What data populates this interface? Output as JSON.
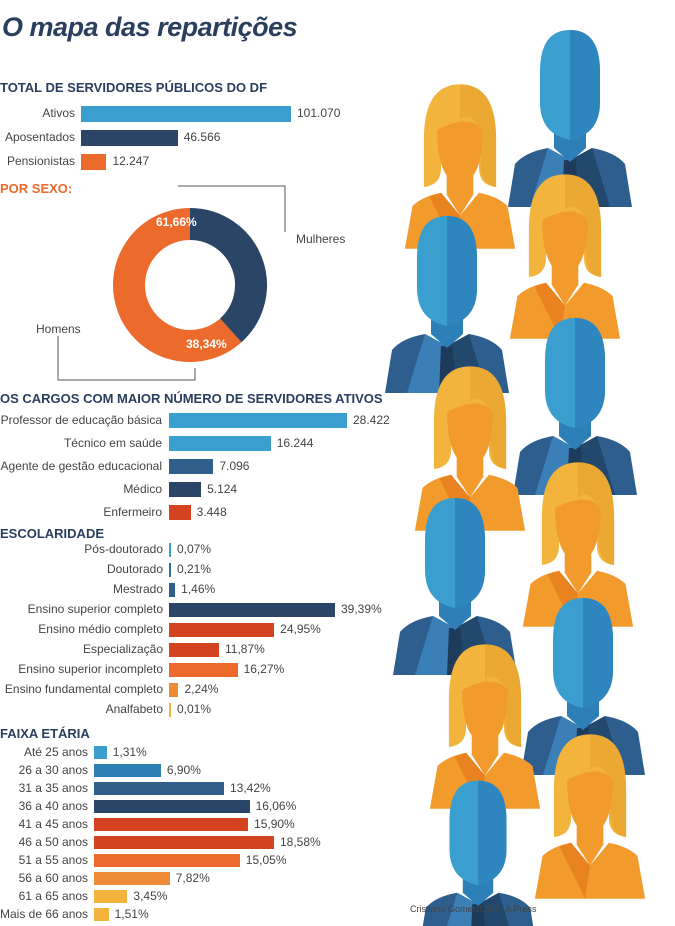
{
  "title": "O mapa das repartições",
  "credit": "Cristiano Gomes/CB/D. A Press",
  "icon": "people-illustration",
  "colors": {
    "blue": "#3a9fcf",
    "navy": "#2a4565",
    "orange": "#ec6a2c",
    "red": "#d4431f",
    "lorange": "#ee8c35",
    "yellow": "#f2b43c"
  },
  "chart_data": [
    {
      "type": "bar",
      "title": "TOTAL DE SERVIDORES PÚBLICOS DO DF",
      "categories": [
        "Ativos",
        "Aposentados",
        "Pensionistas"
      ],
      "values": [
        101070,
        46566,
        12247
      ],
      "labels": [
        "101.070",
        "46.566",
        "12.247"
      ]
    },
    {
      "type": "pie",
      "title": "POR SEXO:",
      "categories": [
        "Mulheres",
        "Homens"
      ],
      "values": [
        61.66,
        38.34
      ],
      "labels": [
        "61,66%",
        "38,34%"
      ]
    },
    {
      "type": "bar",
      "title": "OS CARGOS COM MAIOR NÚMERO DE SERVIDORES ATIVOS",
      "categories": [
        "Professor de educação básica",
        "Técnico em saúde",
        "Agente de gestão educacional",
        "Médico",
        "Enfermeiro"
      ],
      "values": [
        28422,
        16244,
        7096,
        5124,
        3448
      ],
      "labels": [
        "28.422",
        "16.244",
        "7.096",
        "5.124",
        "3.448"
      ]
    },
    {
      "type": "bar",
      "title": "ESCOLARIDADE",
      "categories": [
        "Pós-doutorado",
        "Doutorado",
        "Mestrado",
        "Ensino superior completo",
        "Ensino médio completo",
        "Especialização",
        "Ensino superior incompleto",
        "Ensino fundamental  completo",
        "Analfabeto"
      ],
      "values": [
        0.07,
        0.21,
        1.46,
        39.39,
        24.95,
        11.87,
        16.27,
        2.24,
        0.01
      ],
      "labels": [
        "0,07%",
        "0,21%",
        "1,46%",
        "39,39%",
        "24,95%",
        "11,87%",
        "16,27%",
        "2,24%",
        "0,01%"
      ]
    },
    {
      "type": "bar",
      "title": "FAIXA ETÁRIA",
      "categories": [
        "Até 25 anos",
        "26 a 30 anos",
        "31 a 35 anos",
        "36 a 40 anos",
        "41 a 45 anos",
        "46 a 50 anos",
        "51 a 55 anos",
        "56 a 60 anos",
        "61 a 65 anos",
        "Mais de 66 anos"
      ],
      "values": [
        1.31,
        6.9,
        13.42,
        16.06,
        15.9,
        18.58,
        15.05,
        7.82,
        3.45,
        1.51
      ],
      "labels": [
        "1,31%",
        "6,90%",
        "13,42%",
        "16,06%",
        "15,90%",
        "18,58%",
        "15,05%",
        "7,82%",
        "3,45%",
        "1,51%"
      ]
    }
  ]
}
